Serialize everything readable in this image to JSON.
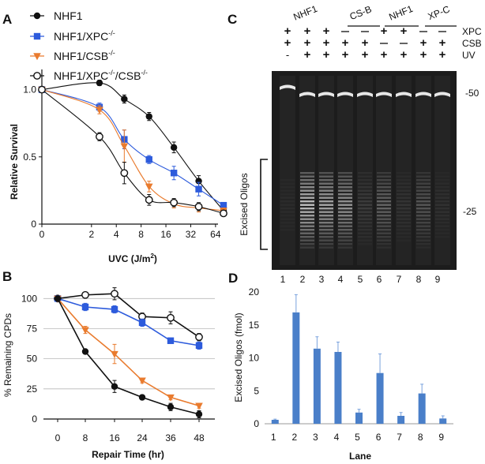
{
  "panels": {
    "A": {
      "letter": "A"
    },
    "B": {
      "letter": "B"
    },
    "C": {
      "letter": "C"
    },
    "D": {
      "letter": "D"
    }
  },
  "colors": {
    "nhf1": "#111111",
    "xpc": "#2d5bdc",
    "csb": "#e97b2e",
    "double": "#111111",
    "bar": "#4a7fc9",
    "gel_bg": "#1a1a1a"
  },
  "chart_data": [
    {
      "panel": "A",
      "type": "scatter",
      "xscale": "log2",
      "xlabel_main": "UVC (J/m",
      "xlabel_sup": "2",
      "xlabel_end": ")",
      "ylabel": "Relative Survival",
      "xticks": [
        0,
        2,
        4,
        8,
        16,
        32,
        64
      ],
      "yticks": [
        0,
        0.5,
        1.0
      ],
      "ytick_labels": [
        "0",
        "0.5",
        "1.0"
      ],
      "ylim": [
        0,
        1.15
      ],
      "series": [
        {
          "name": "NHF1",
          "sup": "",
          "marker": "circle-filled",
          "color_key": "nhf1",
          "x": [
            0,
            2.5,
            5,
            10,
            20,
            40,
            80
          ],
          "y": [
            1.0,
            1.05,
            0.93,
            0.8,
            0.57,
            0.32,
            0.1
          ],
          "err": [
            0.02,
            0.02,
            0.03,
            0.03,
            0.04,
            0.04,
            0.02
          ]
        },
        {
          "name": "NHF1/XPC",
          "sup": "-/-",
          "marker": "square",
          "color_key": "xpc",
          "x": [
            0,
            2.5,
            5,
            10,
            20,
            40,
            80
          ],
          "y": [
            1.0,
            0.87,
            0.63,
            0.48,
            0.38,
            0.26,
            0.14
          ],
          "err": [
            0.02,
            0.03,
            0.07,
            0.03,
            0.05,
            0.05,
            0.02
          ]
        },
        {
          "name": "NHF1/CSB",
          "sup": "-/-",
          "marker": "triangle-down",
          "color_key": "csb",
          "x": [
            0,
            2.5,
            5,
            10,
            20,
            40,
            80
          ],
          "y": [
            1.0,
            0.85,
            0.58,
            0.28,
            0.15,
            0.12,
            0.1
          ],
          "err": [
            0.02,
            0.03,
            0.12,
            0.04,
            0.03,
            0.03,
            0.02
          ]
        },
        {
          "name": "NHF1/XPC",
          "sup": "-/-",
          "name2": "/CSB",
          "sup2": "-/-",
          "marker": "circle-open",
          "color_key": "double",
          "x": [
            0,
            2.5,
            5,
            10,
            20,
            40,
            80
          ],
          "y": [
            1.0,
            0.65,
            0.38,
            0.18,
            0.16,
            0.13,
            0.08
          ],
          "err": [
            0.02,
            0.03,
            0.08,
            0.04,
            0.03,
            0.03,
            0.02
          ]
        }
      ]
    },
    {
      "panel": "B",
      "type": "line",
      "xlabel": "Repair Time (hr)",
      "ylabel": "% Remaining CPDs",
      "categories": [
        "0",
        "8",
        "16",
        "24",
        "36",
        "48"
      ],
      "yticks": [
        0,
        25,
        50,
        75,
        100
      ],
      "ylim": [
        0,
        112
      ],
      "series": [
        {
          "name": "NHF1/XPC/CSB",
          "marker": "circle-open",
          "color_key": "double",
          "values": [
            100,
            103,
            104,
            85,
            84,
            68
          ],
          "err": [
            2,
            2,
            5,
            3,
            5,
            3
          ]
        },
        {
          "name": "NHF1/XPC",
          "marker": "square",
          "color_key": "xpc",
          "values": [
            100,
            93,
            91,
            80,
            65,
            61
          ],
          "err": [
            2,
            3,
            3,
            3,
            2,
            3
          ]
        },
        {
          "name": "NHF1/CSB",
          "marker": "triangle-down",
          "color_key": "csb",
          "values": [
            100,
            74,
            54,
            32,
            18,
            11
          ],
          "err": [
            2,
            3,
            8,
            2,
            2,
            2
          ]
        },
        {
          "name": "NHF1",
          "marker": "circle-filled",
          "color_key": "nhf1",
          "values": [
            100,
            56,
            27,
            18,
            10,
            4
          ],
          "err": [
            2,
            2,
            5,
            2,
            3,
            3
          ]
        }
      ]
    },
    {
      "panel": "D",
      "type": "bar",
      "xlabel": "Lane",
      "ylabel": "Excised  Oligos (fmol)",
      "categories": [
        "1",
        "2",
        "3",
        "4",
        "5",
        "6",
        "7",
        "8",
        "9"
      ],
      "values": [
        0.6,
        16.9,
        11.4,
        10.9,
        1.7,
        7.7,
        1.2,
        4.6,
        0.8
      ],
      "err": [
        0.1,
        2.7,
        1.8,
        1.5,
        0.5,
        2.9,
        0.5,
        1.4,
        0.4
      ],
      "yticks": [
        0,
        5,
        10,
        15,
        20
      ],
      "ylim": [
        0,
        20
      ]
    }
  ],
  "gel": {
    "group_labels": [
      "NHF1",
      "CS-B",
      "NHF1",
      "XP-C"
    ],
    "row_labels": [
      "XPC",
      "CSB",
      "UV"
    ],
    "rows": [
      [
        "+",
        "+",
        "+",
        "",
        "",
        "+",
        "+",
        "",
        ""
      ],
      [
        "+",
        "+",
        "+",
        "+",
        "+",
        "",
        "",
        "+",
        "+"
      ],
      [
        "-",
        "+",
        "+",
        "+",
        "+",
        "+",
        "+",
        "+",
        "+"
      ]
    ],
    "lanes": [
      "1",
      "2",
      "3",
      "4",
      "5",
      "6",
      "7",
      "8",
      "9"
    ],
    "marker_50": "-50",
    "marker_25": "-25",
    "bracket_label": "Excised Oligos",
    "band_intensity": [
      0.05,
      0.95,
      0.8,
      0.7,
      0.15,
      0.4,
      0.1,
      0.3,
      0.08
    ]
  }
}
